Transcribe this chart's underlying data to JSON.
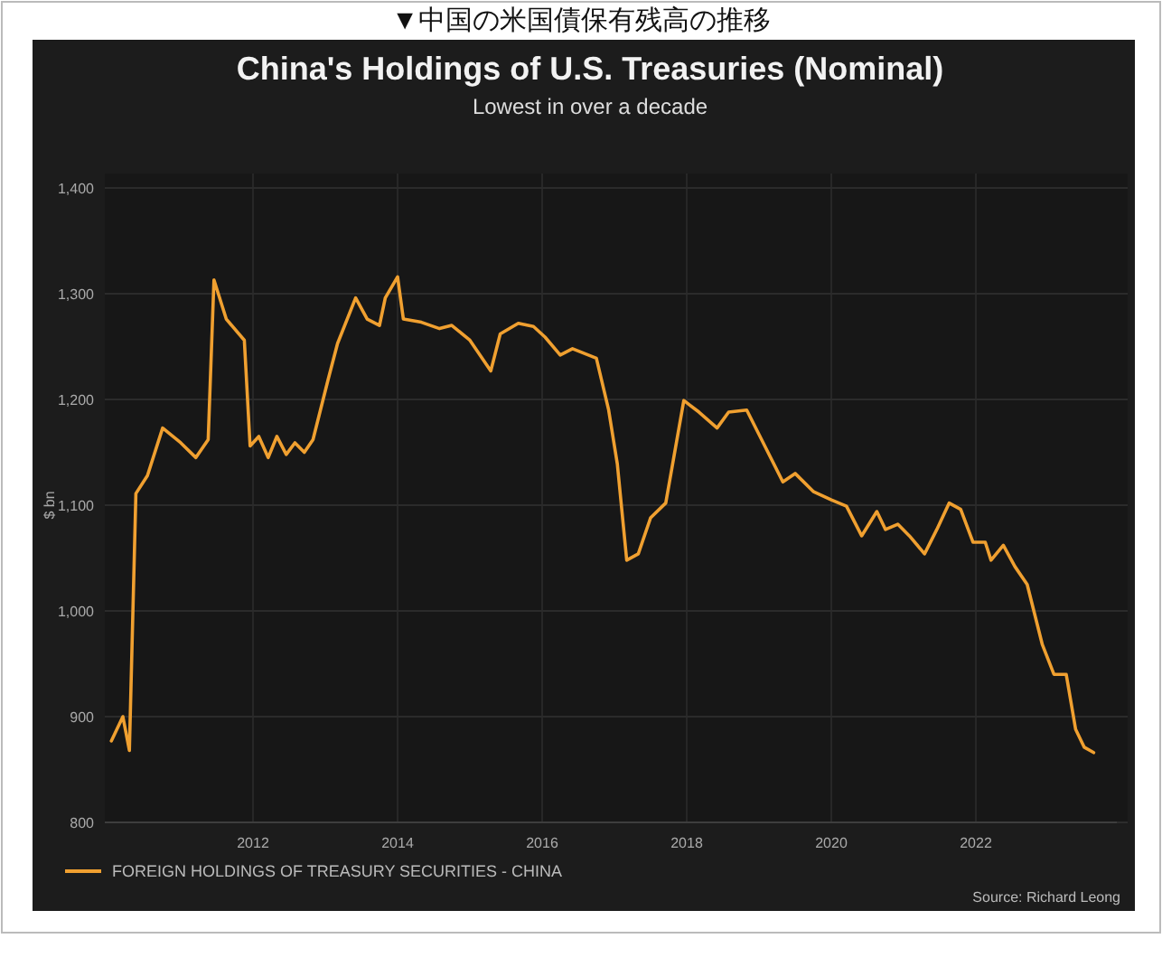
{
  "chart_data": {
    "type": "line",
    "title": "China's Holdings of U.S. Treasuries (Nominal)",
    "subtitle": "Lowest in over a decade",
    "ylabel": "$ bn",
    "annotations": [
      "▼中国の米国債保有残高の推移",
      "Source: Richard Leong"
    ],
    "xlim": [
      2009.95,
      2023.95
    ],
    "xticks": [
      2012,
      2014,
      2016,
      2018,
      2020,
      2022
    ],
    "ylim": [
      800,
      1400
    ],
    "yticks": [
      800,
      900,
      {
        "value": 1000,
        "label": "1,000"
      },
      {
        "value": 1100,
        "label": "1,100"
      },
      {
        "value": 1200,
        "label": "1,200"
      },
      {
        "value": 1300,
        "label": "1,300"
      },
      {
        "value": 1400,
        "label": "1,400"
      }
    ],
    "grid": true,
    "legend": "bottom left",
    "line_style": "solid",
    "marker": "none",
    "series": [
      {
        "name": "FOREIGN HOLDINGS OF TREASURY SECURITIES - CHINA",
        "color": "#f0a030",
        "x": [
          2010.04,
          2010.2,
          2010.29,
          2010.38,
          2010.54,
          2010.75,
          2011.0,
          2011.21,
          2011.38,
          2011.46,
          2011.63,
          2011.88,
          2011.96,
          2012.08,
          2012.21,
          2012.33,
          2012.46,
          2012.58,
          2012.71,
          2012.83,
          2013.04,
          2013.17,
          2013.42,
          2013.58,
          2013.75,
          2013.83,
          2014.0,
          2014.08,
          2014.33,
          2014.58,
          2014.75,
          2015.0,
          2015.29,
          2015.42,
          2015.67,
          2015.88,
          2016.04,
          2016.25,
          2016.42,
          2016.75,
          2016.92,
          2017.04,
          2017.17,
          2017.33,
          2017.5,
          2017.71,
          2017.96,
          2018.17,
          2018.42,
          2018.58,
          2018.83,
          2019.08,
          2019.33,
          2019.5,
          2019.75,
          2020.0,
          2020.21,
          2020.42,
          2020.63,
          2020.75,
          2020.92,
          2021.08,
          2021.29,
          2021.46,
          2021.63,
          2021.79,
          2021.96,
          2022.13,
          2022.21,
          2022.38,
          2022.54,
          2022.71,
          2022.92,
          2023.08,
          2023.25,
          2023.38,
          2023.5,
          2023.63
        ],
        "values": [
          877,
          900,
          868,
          1111,
          1128,
          1173,
          1159,
          1145,
          1162,
          1313,
          1276,
          1256,
          1156,
          1165,
          1145,
          1165,
          1148,
          1159,
          1150,
          1162,
          1219,
          1253,
          1296,
          1276,
          1270,
          1296,
          1316,
          1276,
          1273,
          1267,
          1270,
          1256,
          1227,
          1262,
          1272,
          1269,
          1259,
          1242,
          1248,
          1239,
          1190,
          1139,
          1048,
          1054,
          1088,
          1102,
          1199,
          1188,
          1173,
          1188,
          1190,
          1156,
          1122,
          1130,
          1113,
          1105,
          1099,
          1071,
          1094,
          1077,
          1082,
          1071,
          1054,
          1077,
          1102,
          1096,
          1065,
          1065,
          1048,
          1062,
          1042,
          1025,
          968,
          940,
          940,
          888,
          871,
          866
        ]
      }
    ]
  }
}
